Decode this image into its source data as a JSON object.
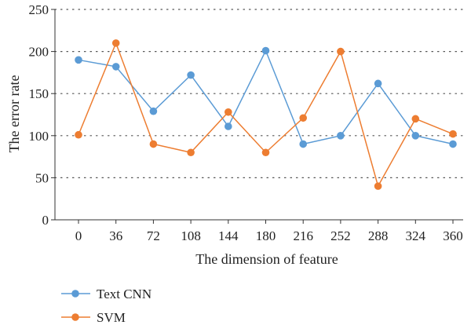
{
  "chart_data": {
    "type": "line",
    "title": "",
    "xlabel": "The dimension of feature",
    "ylabel": "The error rate",
    "categories": [
      "0",
      "36",
      "72",
      "108",
      "144",
      "180",
      "216",
      "252",
      "288",
      "324",
      "360"
    ],
    "ylim": [
      0,
      250
    ],
    "yticks": [
      0,
      50,
      100,
      150,
      200,
      250
    ],
    "grid": "horizontal dotted",
    "legend_position": "bottom-left",
    "series": [
      {
        "name": "Text CNN",
        "color": "#5b9bd5",
        "values": [
          190,
          182,
          129,
          172,
          111,
          201,
          90,
          100,
          162,
          100,
          90
        ]
      },
      {
        "name": "SVM",
        "color": "#ed7d31",
        "values": [
          101,
          210,
          90,
          80,
          128,
          80,
          121,
          200,
          40,
          120,
          102
        ]
      }
    ]
  }
}
